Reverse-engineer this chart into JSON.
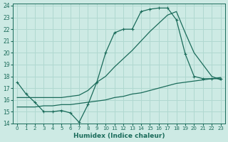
{
  "xlabel": "Humidex (Indice chaleur)",
  "bg_color": "#cdeae4",
  "line_color": "#1a6b5a",
  "grid_color": "#b0d8d0",
  "xlim": [
    -0.5,
    23.5
  ],
  "ylim": [
    14,
    24.2
  ],
  "yticks": [
    14,
    15,
    16,
    17,
    18,
    19,
    20,
    21,
    22,
    23,
    24
  ],
  "xticks": [
    0,
    1,
    2,
    3,
    4,
    5,
    6,
    7,
    8,
    9,
    10,
    11,
    12,
    13,
    14,
    15,
    16,
    17,
    18,
    19,
    20,
    21,
    22,
    23
  ],
  "line1_x": [
    0,
    1,
    2,
    3,
    4,
    5,
    6,
    7,
    8,
    9,
    10,
    11,
    12,
    13,
    14,
    15,
    16,
    17,
    18,
    19,
    20,
    21,
    22,
    23
  ],
  "line1_y": [
    17.5,
    16.5,
    15.8,
    15.0,
    15.0,
    15.1,
    14.9,
    14.1,
    15.6,
    17.5,
    20.0,
    21.7,
    22.0,
    22.0,
    23.5,
    23.7,
    23.8,
    23.8,
    22.8,
    19.9,
    18.0,
    17.8,
    17.8,
    17.8
  ],
  "line2_x": [
    0,
    3,
    4,
    5,
    6,
    7,
    8,
    9,
    10,
    11,
    12,
    13,
    14,
    15,
    16,
    17,
    18,
    19,
    20,
    21,
    22,
    23
  ],
  "line2_y": [
    16.2,
    16.2,
    16.2,
    16.2,
    16.3,
    16.4,
    16.8,
    17.5,
    18.0,
    18.8,
    19.5,
    20.2,
    21.0,
    21.8,
    22.5,
    23.2,
    23.5,
    21.7,
    20.0,
    19.0,
    18.0,
    17.7
  ],
  "line3_x": [
    0,
    1,
    2,
    3,
    4,
    5,
    6,
    7,
    8,
    9,
    10,
    11,
    12,
    13,
    14,
    15,
    16,
    17,
    18,
    19,
    20,
    21,
    22,
    23
  ],
  "line3_y": [
    15.4,
    15.4,
    15.4,
    15.5,
    15.5,
    15.6,
    15.6,
    15.7,
    15.8,
    15.9,
    16.0,
    16.2,
    16.3,
    16.5,
    16.6,
    16.8,
    17.0,
    17.2,
    17.4,
    17.5,
    17.6,
    17.7,
    17.8,
    17.9
  ]
}
